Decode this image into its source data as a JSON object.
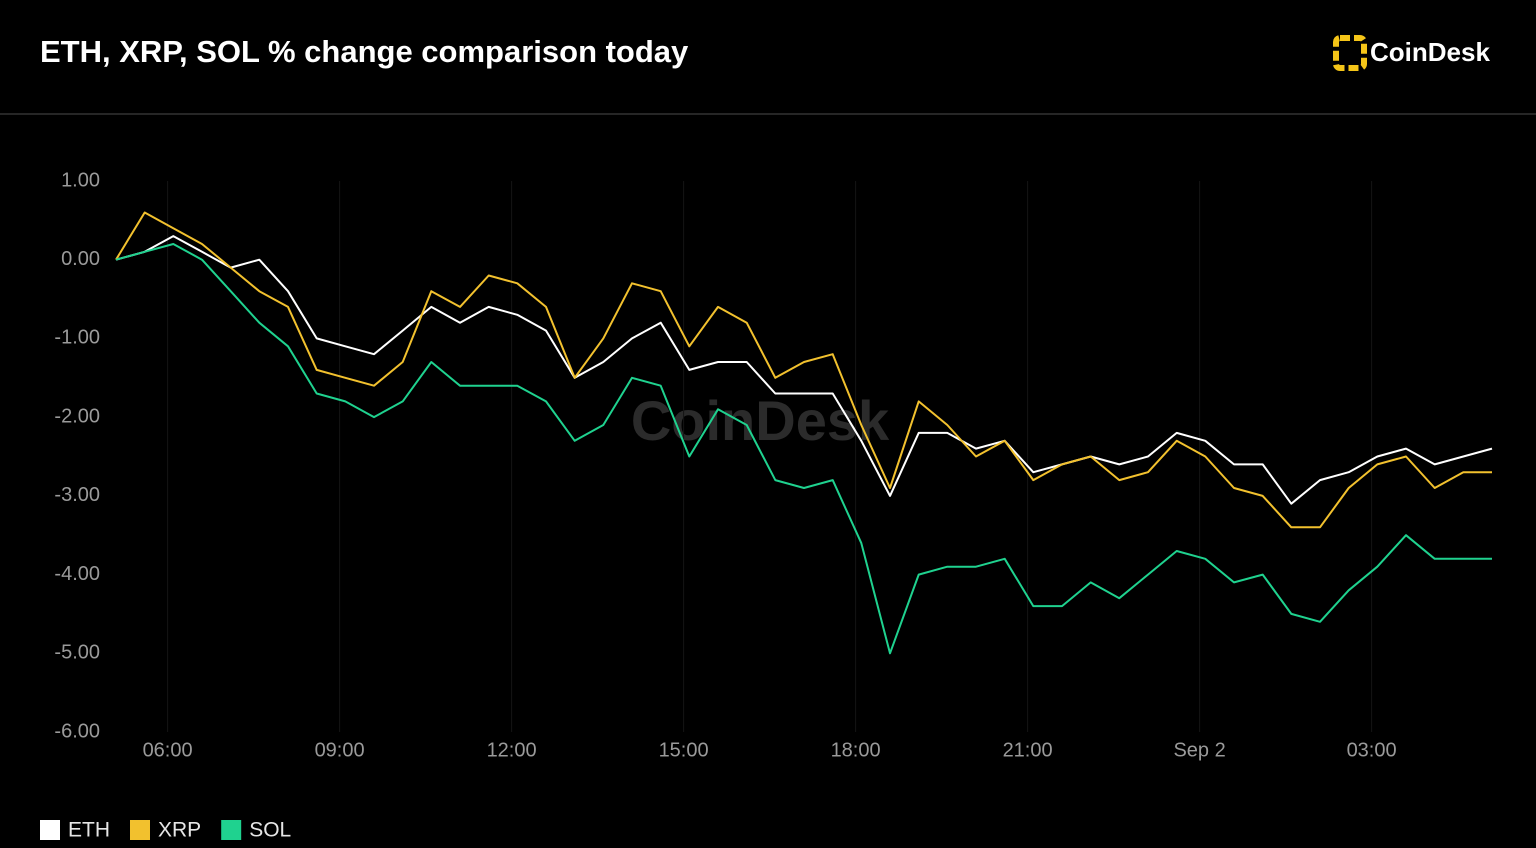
{
  "header": {
    "logo": "CoinDesk"
  },
  "chart_data": {
    "type": "line",
    "title": "ETH, XRP, SOL % change comparison today",
    "watermark": "CoinDesk",
    "x": [
      5.1,
      5.6,
      6.1,
      6.6,
      7.1,
      7.6,
      8.1,
      8.6,
      9.1,
      9.6,
      10.1,
      10.6,
      11.1,
      11.6,
      12.1,
      12.6,
      13.1,
      13.6,
      14.1,
      14.6,
      15.1,
      15.6,
      16.1,
      16.6,
      17.1,
      17.6,
      18.1,
      18.6,
      19.1,
      19.6,
      20.1,
      20.6,
      21.1,
      21.6,
      22.1,
      22.6,
      23.1,
      23.6,
      24.1,
      24.6,
      25.1,
      25.6,
      26.1,
      26.6,
      27.1,
      27.6,
      28.1,
      28.6,
      29.1
    ],
    "xlim": [
      5.1,
      29.1
    ],
    "xticks": [
      {
        "value": 6,
        "label": "06:00"
      },
      {
        "value": 9,
        "label": "09:00"
      },
      {
        "value": 12,
        "label": "12:00"
      },
      {
        "value": 15,
        "label": "15:00"
      },
      {
        "value": 18,
        "label": "18:00"
      },
      {
        "value": 21,
        "label": "21:00"
      },
      {
        "value": 24,
        "label": "Sep 2"
      },
      {
        "value": 27,
        "label": "03:00"
      }
    ],
    "ylim": [
      -6,
      1
    ],
    "yticks": [
      {
        "value": 1,
        "label": "1.00"
      },
      {
        "value": 0,
        "label": "0.00"
      },
      {
        "value": -1,
        "label": "-1.00"
      },
      {
        "value": -2,
        "label": "-2.00"
      },
      {
        "value": -3,
        "label": "-3.00"
      },
      {
        "value": -4,
        "label": "-4.00"
      },
      {
        "value": -5,
        "label": "-5.00"
      },
      {
        "value": -6,
        "label": "-6.00"
      }
    ],
    "grid": true,
    "series": [
      {
        "name": "ETH",
        "color": "#ffffff",
        "values": [
          0,
          0.1,
          0.3,
          0.1,
          -0.1,
          0.0,
          -0.4,
          -1.0,
          -1.1,
          -1.2,
          -0.9,
          -0.6,
          -0.8,
          -0.6,
          -0.7,
          -0.9,
          -1.5,
          -1.3,
          -1.0,
          -0.8,
          -1.4,
          -1.3,
          -1.3,
          -1.7,
          -1.7,
          -1.7,
          -2.3,
          -3.0,
          -2.2,
          -2.2,
          -2.4,
          -2.3,
          -2.7,
          -2.6,
          -2.5,
          -2.6,
          -2.5,
          -2.2,
          -2.3,
          -2.6,
          -2.6,
          -3.1,
          -2.8,
          -2.7,
          -2.5,
          -2.4,
          -2.6,
          -2.5,
          -2.4
        ]
      },
      {
        "name": "XRP",
        "color": "#f2c12e",
        "values": [
          0,
          0.6,
          0.4,
          0.2,
          -0.1,
          -0.4,
          -0.6,
          -1.4,
          -1.5,
          -1.6,
          -1.3,
          -0.4,
          -0.6,
          -0.2,
          -0.3,
          -0.6,
          -1.5,
          -1.0,
          -0.3,
          -0.4,
          -1.1,
          -0.6,
          -0.8,
          -1.5,
          -1.3,
          -1.2,
          -2.1,
          -2.9,
          -1.8,
          -2.1,
          -2.5,
          -2.3,
          -2.8,
          -2.6,
          -2.5,
          -2.8,
          -2.7,
          -2.3,
          -2.5,
          -2.9,
          -3.0,
          -3.4,
          -3.4,
          -2.9,
          -2.6,
          -2.5,
          -2.9,
          -2.7,
          -2.7
        ]
      },
      {
        "name": "SOL",
        "color": "#1fd28f",
        "values": [
          0,
          0.1,
          0.2,
          0.0,
          -0.4,
          -0.8,
          -1.1,
          -1.7,
          -1.8,
          -2.0,
          -1.8,
          -1.3,
          -1.6,
          -1.6,
          -1.6,
          -1.8,
          -2.3,
          -2.1,
          -1.5,
          -1.6,
          -2.5,
          -1.9,
          -2.1,
          -2.8,
          -2.9,
          -2.8,
          -3.6,
          -5.0,
          -4.0,
          -3.9,
          -3.9,
          -3.8,
          -4.4,
          -4.4,
          -4.1,
          -4.3,
          -4.0,
          -3.7,
          -3.8,
          -4.1,
          -4.0,
          -4.5,
          -4.6,
          -4.2,
          -3.9,
          -3.5,
          -3.8,
          -3.8,
          -3.8
        ]
      }
    ]
  }
}
